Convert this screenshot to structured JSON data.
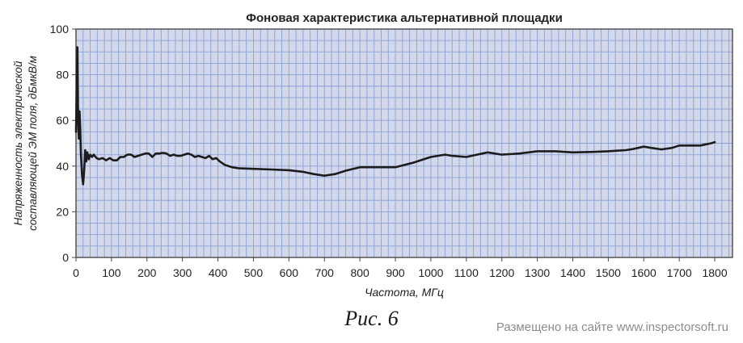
{
  "chart_data": {
    "type": "line",
    "title": "Фоновая характеристика альтернативной площадки",
    "xlabel": "Частота, МГц",
    "ylabel_lines": [
      "Напряженность электрической",
      "составляющей ЭМ поля, дБмкВ/м"
    ],
    "xlim": [
      0,
      1850
    ],
    "ylim": [
      0,
      100
    ],
    "x_ticks": [
      0,
      100,
      200,
      300,
      400,
      500,
      600,
      700,
      800,
      900,
      1000,
      1100,
      1200,
      1300,
      1400,
      1500,
      1600,
      1700,
      1800
    ],
    "y_ticks": [
      0,
      20,
      40,
      60,
      80,
      100
    ],
    "grid": true,
    "colors": {
      "plot_bg": "#d3d8ea",
      "grid": "#8aa2d6",
      "frame": "#4a4a4a",
      "line": "#1c1c1c"
    },
    "series": [
      {
        "x": [
          0,
          2,
          4,
          6,
          8,
          10,
          12,
          14,
          17,
          20,
          23,
          26,
          29,
          32,
          36,
          40,
          45,
          50,
          58,
          65,
          75,
          85,
          95,
          105,
          115,
          125,
          135,
          145,
          155,
          165,
          175,
          185,
          195,
          205,
          215,
          225,
          235,
          245,
          255,
          265,
          275,
          285,
          295,
          305,
          315,
          325,
          335,
          345,
          355,
          365,
          375,
          385,
          395,
          405,
          420,
          440,
          460,
          500,
          550,
          600,
          640,
          670,
          700,
          730,
          760,
          800,
          850,
          900,
          950,
          1000,
          1040,
          1060,
          1100,
          1130,
          1160,
          1200,
          1250,
          1300,
          1350,
          1400,
          1450,
          1500,
          1550,
          1570,
          1600,
          1620,
          1650,
          1680,
          1700,
          1730,
          1760,
          1790,
          1800
        ],
        "y": [
          55,
          75,
          92,
          60,
          52,
          64,
          56,
          45,
          36,
          32,
          38,
          47,
          42,
          46,
          43,
          45,
          44,
          45,
          43.5,
          43,
          43.5,
          42.5,
          43.5,
          42.5,
          42.5,
          44,
          44,
          45,
          45,
          44,
          44.5,
          45,
          45.5,
          45.5,
          44,
          45.5,
          45.5,
          45.8,
          45.5,
          44.5,
          45,
          44.5,
          44.5,
          45,
          45.5,
          45,
          44,
          44.5,
          44,
          43.5,
          44.5,
          43,
          43.5,
          42,
          40.5,
          39.5,
          39,
          38.8,
          38.5,
          38.2,
          37.5,
          36.5,
          35.8,
          36.5,
          38,
          39.5,
          39.5,
          39.5,
          41.5,
          44,
          45,
          44.5,
          44,
          45,
          46,
          45,
          45.5,
          46.5,
          46.5,
          46,
          46.2,
          46.5,
          47,
          47.5,
          48.5,
          48,
          47.3,
          48,
          49,
          49,
          49,
          50,
          50.5
        ]
      }
    ]
  },
  "caption": "Рис. 6",
  "watermark": "Размещено на сайте www.inspectorsoft.ru"
}
